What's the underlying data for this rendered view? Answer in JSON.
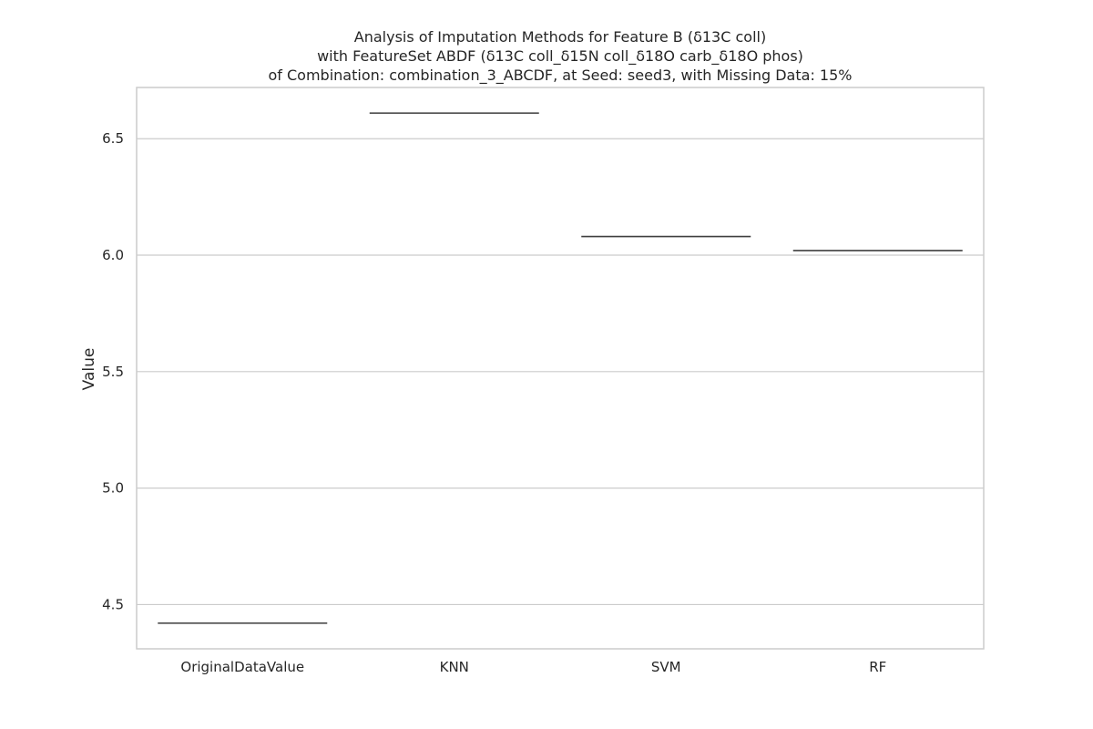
{
  "chart_data": {
    "type": "box",
    "title_lines": [
      "Analysis of Imputation Methods for Feature B (δ13C coll)",
      "with FeatureSet ABDF (δ13C coll_δ15N coll_δ18O carb_δ18O phos)",
      "of Combination: combination_3_ABCDF, at Seed: seed3, with Missing Data: 15%"
    ],
    "xlabel": "",
    "ylabel": "Value",
    "categories": [
      "OriginalDataValue",
      "KNN",
      "SVM",
      "RF"
    ],
    "values": [
      4.42,
      6.61,
      6.08,
      6.02
    ],
    "ylim": [
      4.31,
      6.72
    ],
    "yticks": [
      4.5,
      5.0,
      5.5,
      6.0,
      6.5
    ],
    "ytick_labels": [
      "4.5",
      "5.0",
      "5.5",
      "6.0",
      "6.5"
    ],
    "grid": true,
    "legend": "none",
    "colors": {
      "grid": "#cccccc",
      "frame": "#cccccc",
      "box_line": "#3f3f3f",
      "text": "#262626"
    }
  }
}
